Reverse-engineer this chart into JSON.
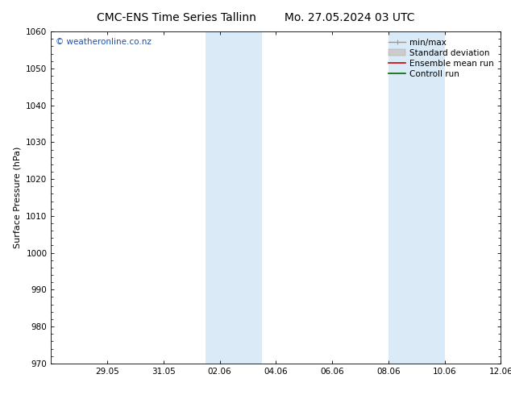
{
  "title_left": "CMC-ENS Time Series Tallinn",
  "title_right": "Mo. 27.05.2024 03 UTC",
  "ylabel": "Surface Pressure (hPa)",
  "ylim": [
    970,
    1060
  ],
  "yticks": [
    970,
    980,
    990,
    1000,
    1010,
    1020,
    1030,
    1040,
    1050,
    1060
  ],
  "xlim": [
    0,
    16
  ],
  "xtick_positions": [
    2,
    4,
    6,
    8,
    10,
    12,
    14,
    16
  ],
  "xtick_labels": [
    "29.05",
    "31.05",
    "02.06",
    "04.06",
    "06.06",
    "08.06",
    "10.06",
    "12.06"
  ],
  "shaded_bands": [
    {
      "x_start": 5.5,
      "x_end": 6.5
    },
    {
      "x_start": 6.5,
      "x_end": 7.5
    },
    {
      "x_start": 12.0,
      "x_end": 13.0
    },
    {
      "x_start": 13.0,
      "x_end": 14.0
    }
  ],
  "shaded_color": "#daeaf7",
  "watermark_text": "© weatheronline.co.nz",
  "watermark_color": "#1a50b0",
  "background_color": "#ffffff",
  "title_fontsize": 10,
  "axis_label_fontsize": 8,
  "tick_fontsize": 7.5,
  "legend_fontsize": 7.5,
  "legend_entries": [
    {
      "label": "min/max",
      "color": "#999999",
      "lw": 1.0
    },
    {
      "label": "Standard deviation",
      "color": "#cccccc",
      "lw": 5
    },
    {
      "label": "Ensemble mean run",
      "color": "#cc0000",
      "lw": 1.2
    },
    {
      "label": "Controll run",
      "color": "#006600",
      "lw": 1.2
    }
  ]
}
